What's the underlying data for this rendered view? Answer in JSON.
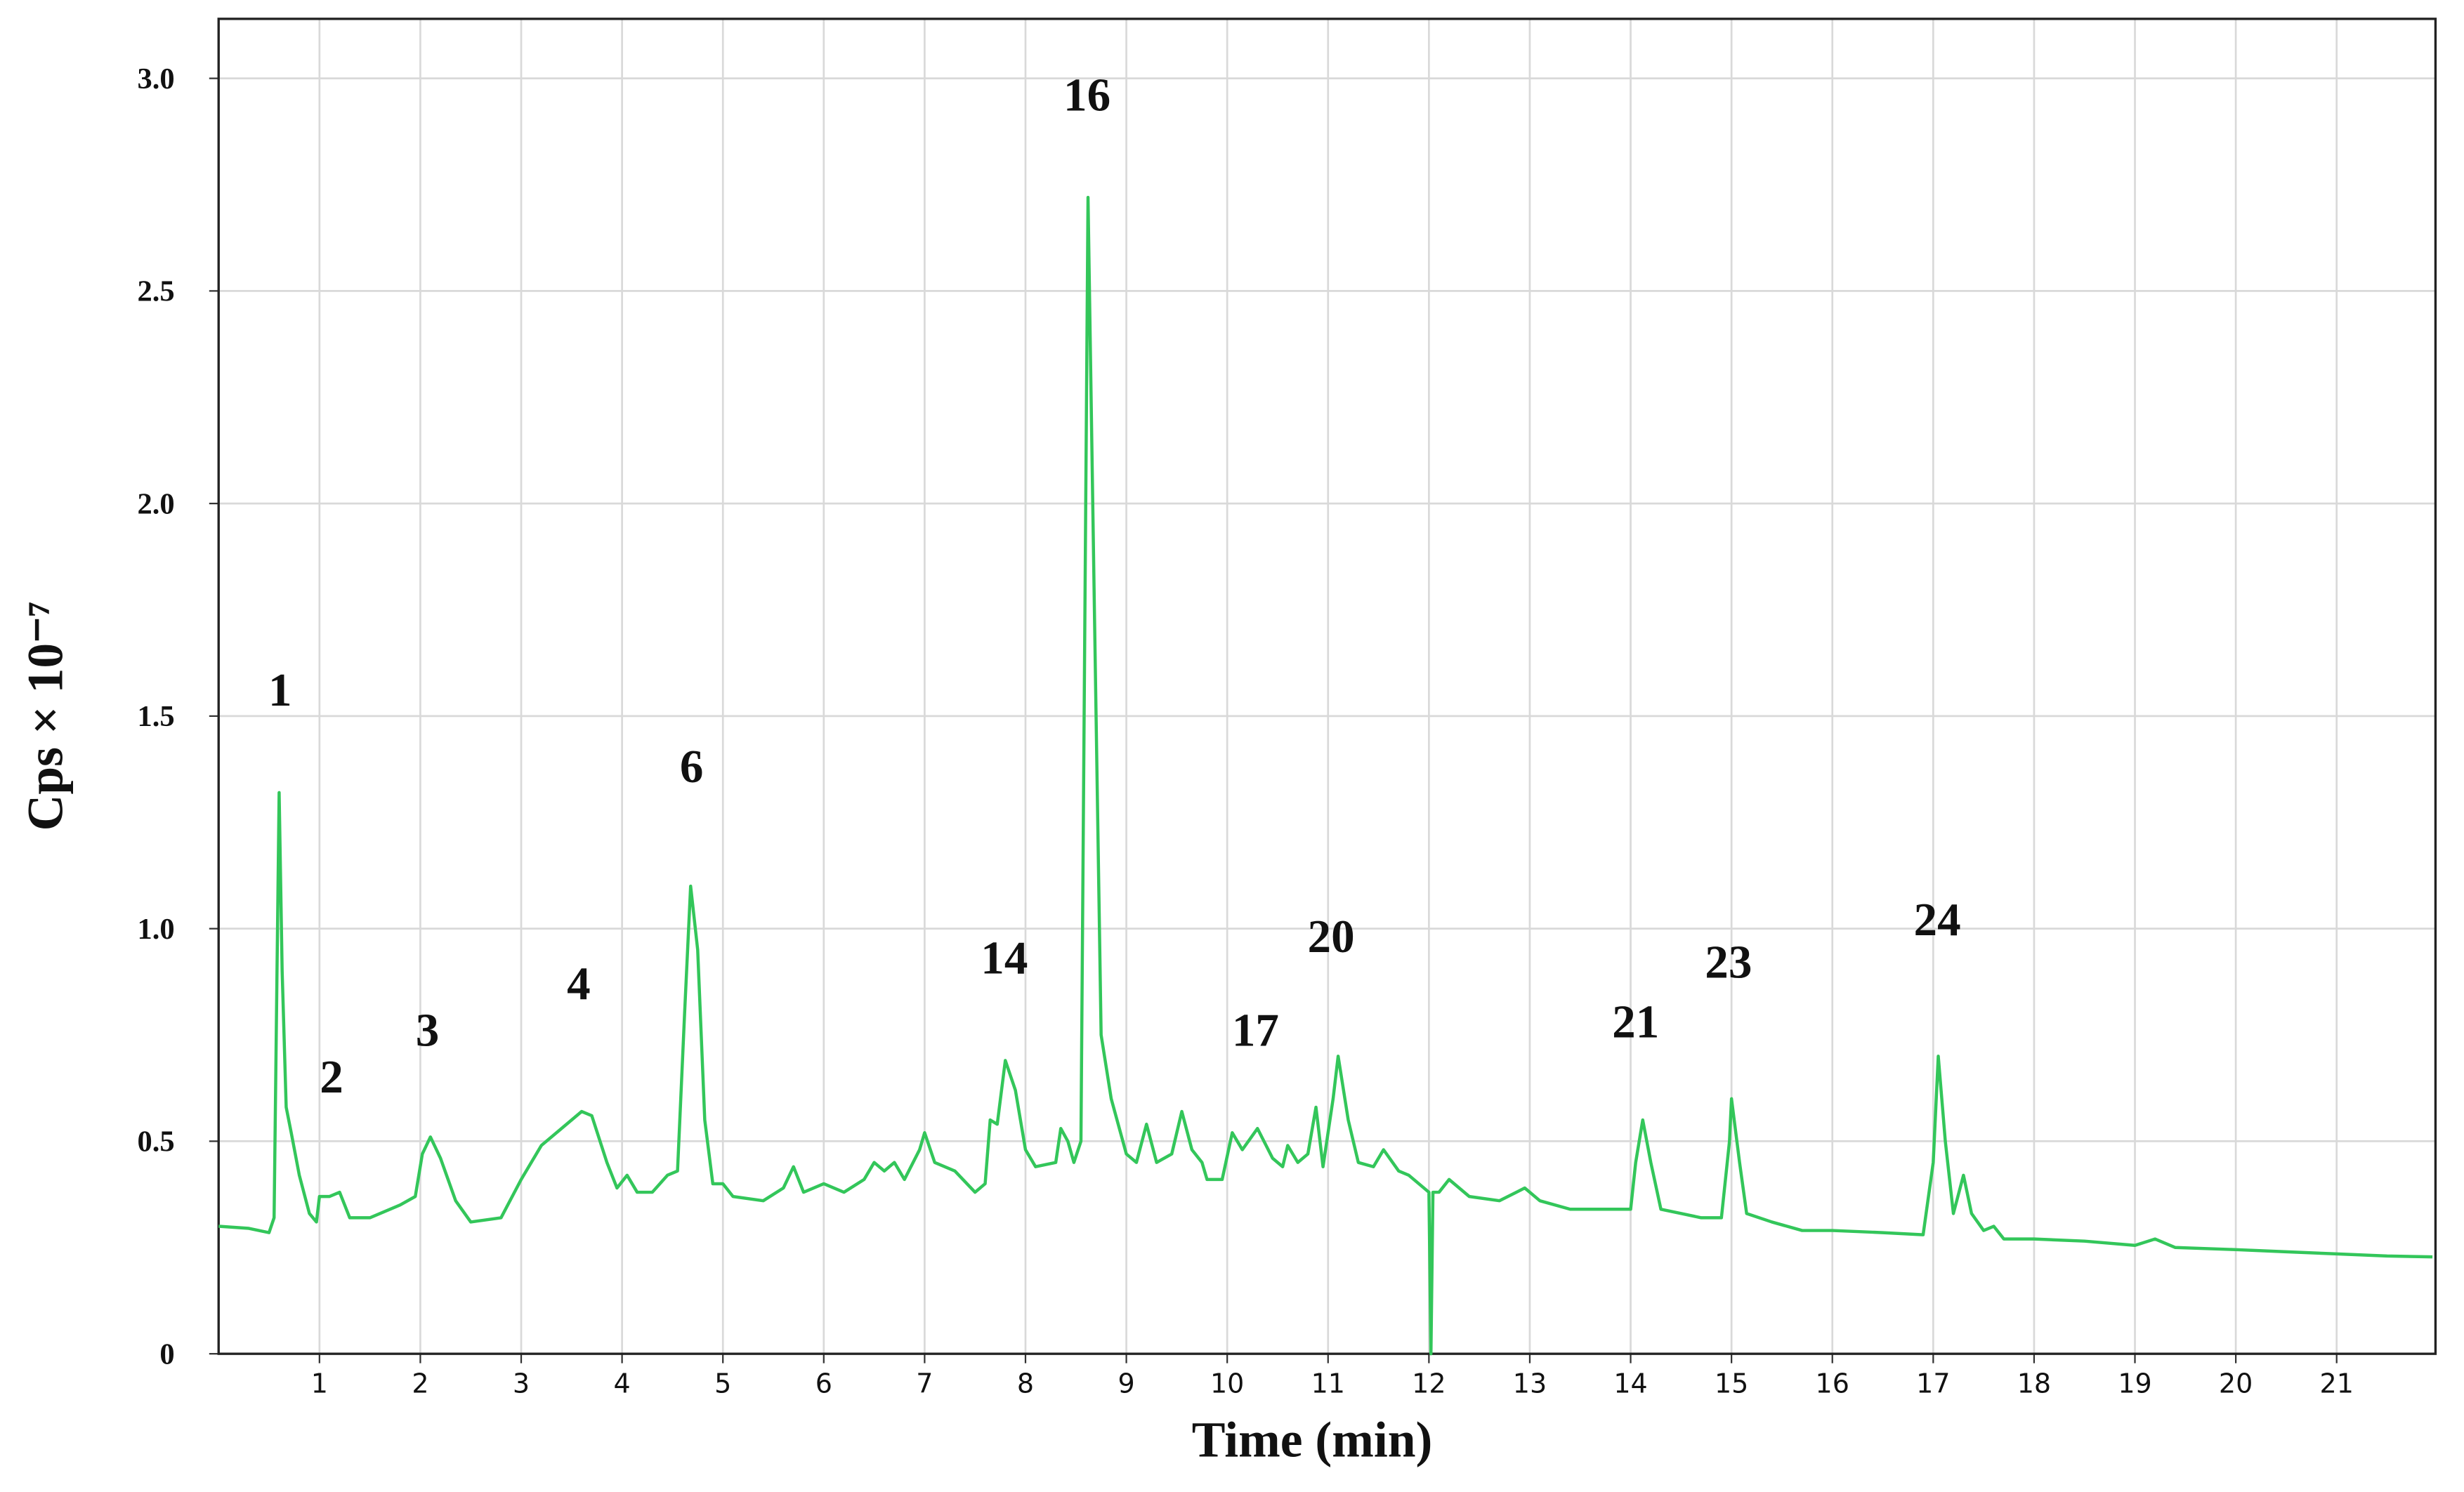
{
  "chart_data": {
    "type": "line",
    "x_label": "Time (min)",
    "y_label": "Cps × 10⁻⁷",
    "color": "#33c65a",
    "grid": true,
    "xlim": [
      0,
      21.98
    ],
    "ylim": [
      0,
      3.14
    ],
    "xticks": [
      1,
      2,
      3,
      4,
      5,
      6,
      7,
      8,
      9,
      10,
      11,
      12,
      13,
      14,
      15,
      16,
      17,
      18,
      19,
      20,
      21
    ],
    "yticks": [
      0,
      0.5,
      {
        "value": 1,
        "label": "1.0"
      },
      1.5,
      {
        "value": 2,
        "label": "2.0"
      },
      2.5,
      {
        "value": 3,
        "label": "3.0"
      }
    ],
    "x": [
      0.0,
      0.3,
      0.5,
      0.55,
      0.6,
      0.63,
      0.67,
      0.72,
      0.8,
      0.9,
      0.97,
      1.0,
      1.1,
      1.2,
      1.3,
      1.5,
      1.8,
      1.95,
      2.02,
      2.1,
      2.2,
      2.35,
      2.5,
      2.8,
      3.0,
      3.2,
      3.4,
      3.6,
      3.7,
      3.85,
      3.95,
      4.05,
      4.15,
      4.3,
      4.45,
      4.55,
      4.62,
      4.68,
      4.75,
      4.82,
      4.9,
      5.0,
      5.1,
      5.4,
      5.6,
      5.7,
      5.8,
      6.0,
      6.2,
      6.4,
      6.5,
      6.6,
      6.7,
      6.8,
      6.95,
      7.0,
      7.1,
      7.3,
      7.5,
      7.6,
      7.65,
      7.72,
      7.8,
      7.9,
      8.0,
      8.1,
      8.3,
      8.35,
      8.42,
      8.48,
      8.55,
      8.62,
      8.68,
      8.75,
      8.85,
      9.0,
      9.1,
      9.2,
      9.3,
      9.45,
      9.55,
      9.65,
      9.75,
      9.8,
      9.95,
      10.05,
      10.15,
      10.3,
      10.45,
      10.55,
      10.6,
      10.7,
      10.8,
      10.88,
      10.95,
      11.05,
      11.1,
      11.2,
      11.3,
      11.45,
      11.55,
      11.7,
      11.8,
      11.9,
      12.0,
      12.02,
      12.04,
      12.1,
      12.2,
      12.4,
      12.7,
      12.95,
      13.1,
      13.4,
      13.7,
      14.0,
      14.05,
      14.12,
      14.2,
      14.3,
      14.5,
      14.7,
      14.9,
      14.98,
      15.0,
      15.08,
      15.15,
      15.4,
      15.7,
      16.0,
      16.5,
      16.9,
      17.0,
      17.05,
      17.12,
      17.2,
      17.3,
      17.38,
      17.5,
      17.6,
      17.7,
      18.0,
      18.5,
      19.0,
      19.2,
      19.4,
      20.0,
      20.5,
      21.0,
      21.5,
      21.95
    ],
    "values": [
      0.3,
      0.295,
      0.285,
      0.32,
      1.32,
      0.9,
      0.58,
      0.52,
      0.42,
      0.33,
      0.31,
      0.37,
      0.37,
      0.38,
      0.32,
      0.32,
      0.35,
      0.37,
      0.47,
      0.51,
      0.46,
      0.36,
      0.31,
      0.32,
      0.41,
      0.49,
      0.53,
      0.57,
      0.56,
      0.45,
      0.39,
      0.42,
      0.38,
      0.38,
      0.42,
      0.43,
      0.8,
      1.1,
      0.95,
      0.55,
      0.4,
      0.4,
      0.37,
      0.36,
      0.39,
      0.44,
      0.38,
      0.4,
      0.38,
      0.41,
      0.45,
      0.43,
      0.45,
      0.41,
      0.48,
      0.52,
      0.45,
      0.43,
      0.38,
      0.4,
      0.55,
      0.54,
      0.69,
      0.62,
      0.48,
      0.44,
      0.45,
      0.53,
      0.5,
      0.45,
      0.5,
      2.72,
      1.8,
      0.75,
      0.6,
      0.47,
      0.45,
      0.54,
      0.45,
      0.47,
      0.57,
      0.48,
      0.45,
      0.41,
      0.41,
      0.52,
      0.48,
      0.53,
      0.46,
      0.44,
      0.49,
      0.45,
      0.47,
      0.58,
      0.44,
      0.6,
      0.7,
      0.55,
      0.45,
      0.44,
      0.48,
      0.43,
      0.42,
      0.4,
      0.38,
      0.0,
      0.38,
      0.38,
      0.41,
      0.37,
      0.36,
      0.39,
      0.36,
      0.34,
      0.34,
      0.34,
      0.45,
      0.55,
      0.45,
      0.34,
      0.33,
      0.32,
      0.32,
      0.5,
      0.6,
      0.45,
      0.33,
      0.31,
      0.29,
      0.29,
      0.285,
      0.28,
      0.45,
      0.7,
      0.5,
      0.33,
      0.42,
      0.33,
      0.29,
      0.3,
      0.27,
      0.27,
      0.265,
      0.255,
      0.27,
      0.25,
      0.245,
      0.24,
      0.235,
      0.23,
      0.228
    ],
    "annotations": [
      {
        "text": "1",
        "x": 0.61,
        "y": 1.55
      },
      {
        "text": "2",
        "x": 1.12,
        "y": 0.64
      },
      {
        "text": "3",
        "x": 2.07,
        "y": 0.75
      },
      {
        "text": "4",
        "x": 3.57,
        "y": 0.86
      },
      {
        "text": "6",
        "x": 4.69,
        "y": 1.37
      },
      {
        "text": "14",
        "x": 7.79,
        "y": 0.92
      },
      {
        "text": "16",
        "x": 8.61,
        "y": 2.95
      },
      {
        "text": "17",
        "x": 10.28,
        "y": 0.75
      },
      {
        "text": "20",
        "x": 11.03,
        "y": 0.97
      },
      {
        "text": "21",
        "x": 14.05,
        "y": 0.77
      },
      {
        "text": "23",
        "x": 14.97,
        "y": 0.91
      },
      {
        "text": "24",
        "x": 17.04,
        "y": 1.01
      }
    ]
  }
}
